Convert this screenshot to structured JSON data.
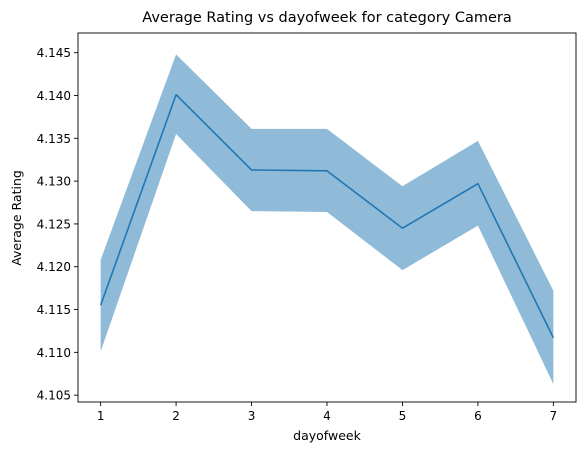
{
  "chart_data": {
    "type": "line",
    "title": "Average Rating vs dayofweek for category Camera",
    "xlabel": "dayofweek",
    "ylabel": "Average Rating",
    "x": [
      1,
      2,
      3,
      4,
      5,
      6,
      7
    ],
    "x_ticks": [
      "1",
      "2",
      "3",
      "4",
      "5",
      "6",
      "7"
    ],
    "xlim": [
      0.7,
      7.3
    ],
    "y_ticks": [
      "4.105",
      "4.110",
      "4.115",
      "4.120",
      "4.125",
      "4.130",
      "4.135",
      "4.140",
      "4.145"
    ],
    "ylim": [
      4.1042,
      4.1473
    ],
    "grid": false,
    "legend": "none",
    "series": [
      {
        "values": [
          4.1155,
          4.1401,
          4.1313,
          4.1312,
          4.1245,
          4.1297,
          4.1117
        ],
        "lower": [
          4.1101,
          4.1355,
          4.1265,
          4.1264,
          4.1196,
          4.1248,
          4.1063
        ],
        "upper": [
          4.1208,
          4.1448,
          4.1361,
          4.1361,
          4.1294,
          4.1347,
          4.1172
        ],
        "color": "#1f77b4",
        "band_color": "#1f77b4",
        "band_opacity": 0.5
      }
    ]
  }
}
